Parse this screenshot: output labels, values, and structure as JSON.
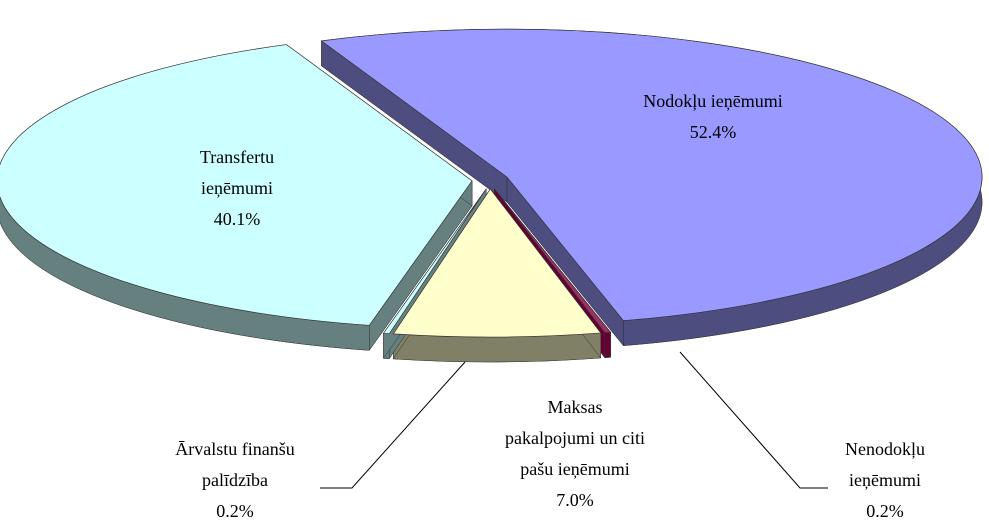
{
  "chart_data": {
    "type": "pie",
    "categories": [
      "Nodokļu ieņēmumi",
      "Nenodokļu\nieņēmumi",
      "Maksas\npakalpojumi un citi\npašu ieņēmumi",
      "Ārvalstu finanšu\npalīdzība",
      "Transfertu\nieņēmumi"
    ],
    "values": [
      52.4,
      0.2,
      7.0,
      0.2,
      40.1
    ],
    "value_labels": [
      "52.4%",
      "0.2%",
      "7.0%",
      "0.2%",
      "40.1%"
    ],
    "colors": [
      "#9999ff",
      "#993366",
      "#ffffcc",
      "#ccffff",
      "#ccffff"
    ],
    "side_colors": [
      "#4d4d80",
      "#660033",
      "#808066",
      "#668080",
      "#668080"
    ]
  }
}
